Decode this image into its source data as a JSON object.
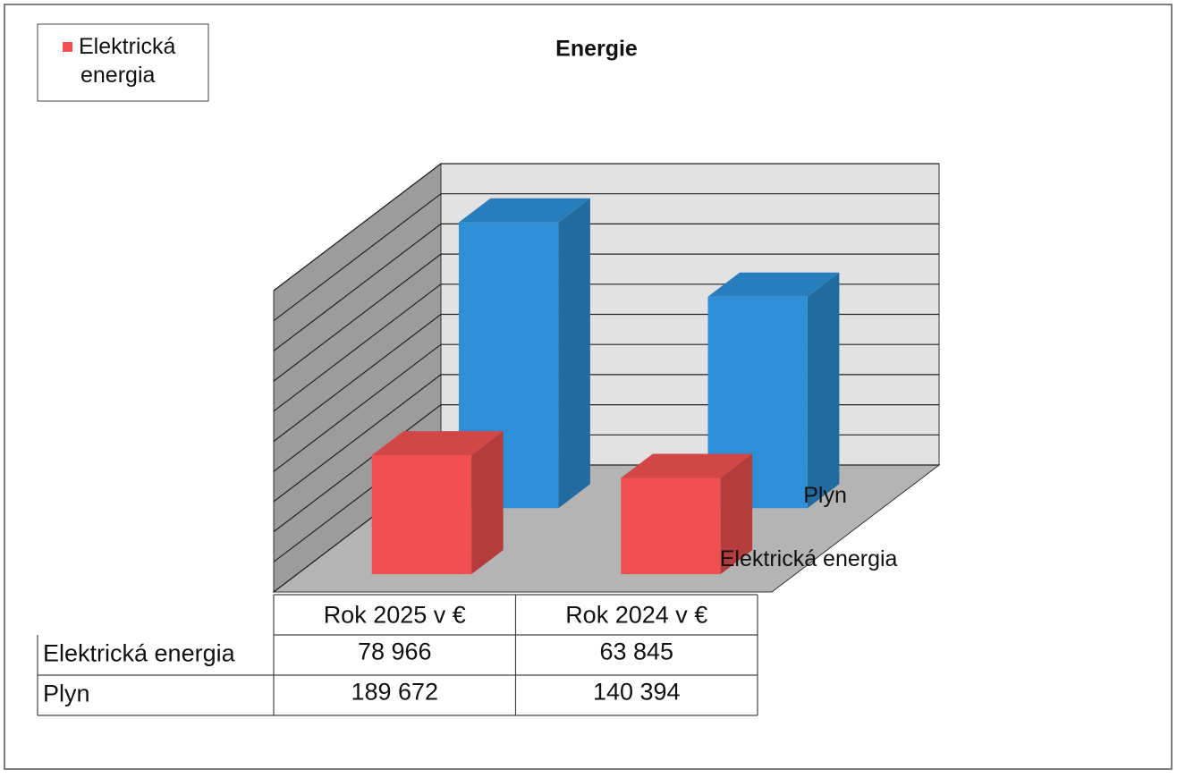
{
  "chart_data": {
    "type": "bar3d",
    "title": "Energie",
    "categories": [
      "Rok 2025 v €",
      "Rok 2024 v €"
    ],
    "series": [
      {
        "name": "Elektrická energia",
        "color": "#f05050",
        "values": [
          78966,
          63845
        ],
        "value_labels": [
          "78 966",
          "63 845"
        ]
      },
      {
        "name": "Plyn",
        "color": "#2e8fd6",
        "values": [
          189672,
          140394
        ],
        "value_labels": [
          "189 672",
          "140 394"
        ]
      }
    ],
    "ylim": [
      0,
      200000
    ],
    "yticks": [
      0,
      20000,
      40000,
      60000,
      80000,
      100000,
      120000,
      140000,
      160000,
      180000,
      200000
    ],
    "grid": true
  }
}
